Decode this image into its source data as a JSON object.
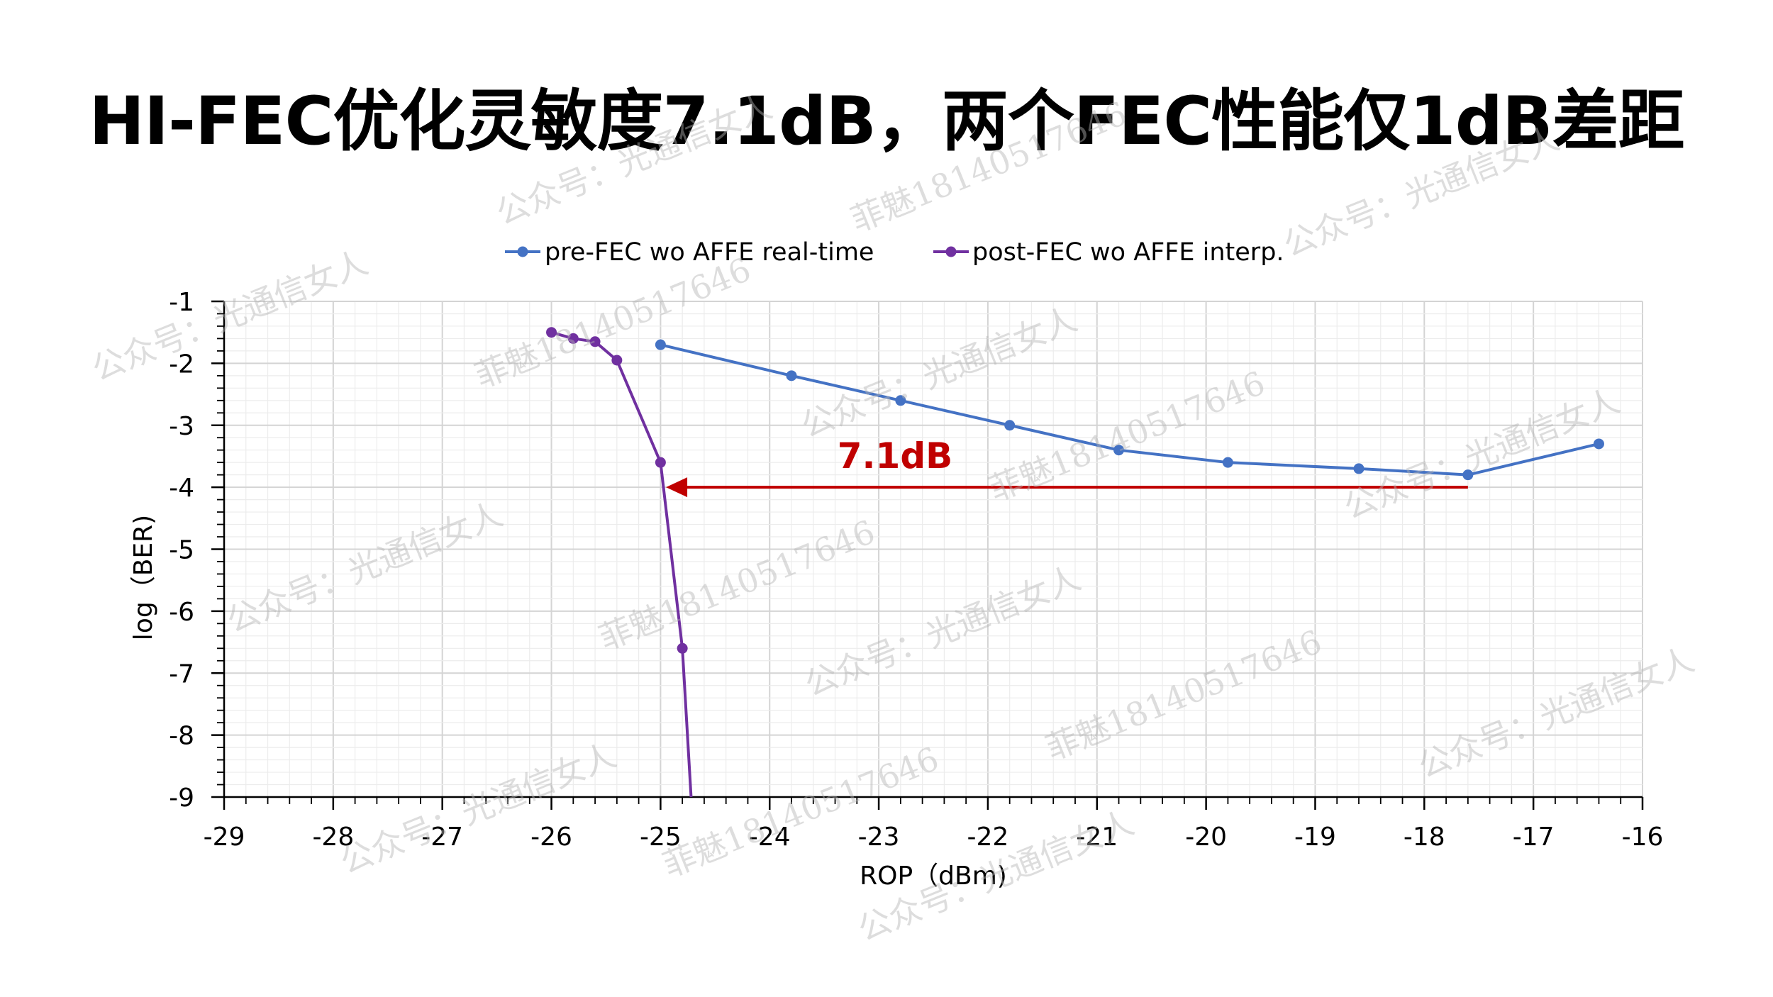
{
  "title": "HI-FEC优化灵敏度7.1dB，两个FEC性能仅1dB差距",
  "colors": {
    "pre_fec": "#4472C4",
    "post_fec": "#7030A0",
    "annotation": "#C00000",
    "grid": "#e0e0e0",
    "axis": "#000000"
  },
  "chart_data": {
    "type": "line",
    "xlabel": "ROP（dBm)",
    "ylabel": "log（BER)",
    "xlim": [
      -29,
      -16
    ],
    "ylim": [
      -9,
      -1
    ],
    "x_ticks": [
      -29,
      -28,
      -27,
      -26,
      -25,
      -24,
      -23,
      -22,
      -21,
      -20,
      -19,
      -18,
      -17,
      -16
    ],
    "y_ticks": [
      -1,
      -2,
      -3,
      -4,
      -5,
      -6,
      -7,
      -8,
      -9
    ],
    "grid": true,
    "legend_position": "top",
    "series": [
      {
        "name": "pre-FEC wo AFFE real-time",
        "color_key": "pre_fec",
        "marker": "circle",
        "x": [
          -25.0,
          -23.8,
          -22.8,
          -21.8,
          -20.8,
          -19.8,
          -18.6,
          -17.6,
          -16.4
        ],
        "y": [
          -1.7,
          -2.2,
          -2.6,
          -3.0,
          -3.4,
          -3.6,
          -3.7,
          -3.8,
          -3.3
        ]
      },
      {
        "name": "post-FEC wo AFFE interp.",
        "color_key": "post_fec",
        "marker": "circle",
        "x": [
          -26.0,
          -25.8,
          -25.6,
          -25.4,
          -25.0,
          -24.8
        ],
        "y": [
          -1.5,
          -1.6,
          -1.65,
          -1.95,
          -3.6,
          -6.6
        ],
        "tail": {
          "x": -24.72,
          "y": -9.0
        }
      }
    ],
    "annotation": {
      "text": "7.1dB",
      "arrow_from": {
        "x": -17.6,
        "y": -4.0
      },
      "arrow_to": {
        "x": -24.95,
        "y": -4.0
      }
    }
  },
  "watermarks": {
    "account": "公众号：光通信女人",
    "author": "菲魅18140517646"
  }
}
